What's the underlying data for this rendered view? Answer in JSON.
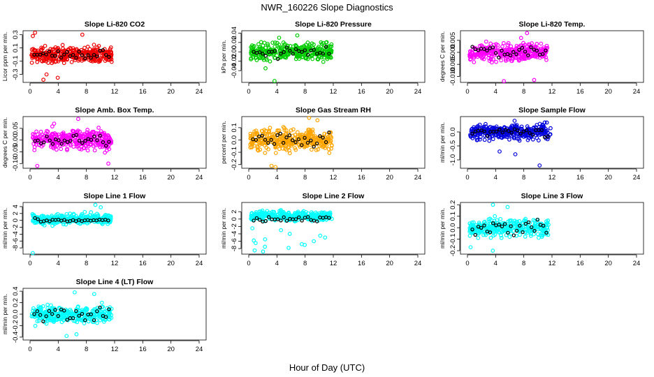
{
  "figure": {
    "title": "NWR_160226  Slope Diagnostics",
    "xlabel": "Hour of Day (UTC)"
  },
  "chart_data": [
    {
      "type": "scatter",
      "title": "Slope Li-820 CO2",
      "ylabel": "Licor ppm per min.",
      "color": "#ee0000",
      "xlim": [
        0,
        24
      ],
      "xticks": [
        0,
        4,
        8,
        12,
        16,
        20,
        24
      ],
      "ylim": [
        -0.42,
        0.36
      ],
      "yticks": [
        -0.3,
        -0.1,
        0.1,
        0.3
      ],
      "ytick_labels": [
        "-0.3",
        "-0.1",
        "0.1",
        "0.3"
      ],
      "x_range": [
        0.2,
        11.6
      ],
      "center": 0.0,
      "spread": 0.1,
      "ref_spread": 0.05,
      "ref_offset": 0.0,
      "extremes": [
        -0.38,
        -0.35,
        0.33,
        0.3,
        0.28,
        -0.3
      ]
    },
    {
      "type": "scatter",
      "title": "Slope Li-820 Pressure",
      "ylabel": "kPa per min.",
      "color": "#00cc00",
      "xlim": [
        0,
        24
      ],
      "xticks": [
        0,
        4,
        8,
        12,
        16,
        20,
        24
      ],
      "ylim": [
        -0.065,
        0.045
      ],
      "yticks": [
        -0.04,
        -0.02,
        0.0,
        0.02,
        0.04
      ],
      "ytick_labels": [
        "-0.04",
        "-0.02",
        "0.00",
        "0.02",
        "0.04"
      ],
      "x_range": [
        0.3,
        11.8
      ],
      "center": 0.0,
      "spread": 0.014,
      "ref_spread": 0.008,
      "ref_offset": 0.0,
      "extremes": [
        -0.062,
        0.035,
        0.03,
        -0.035
      ]
    },
    {
      "type": "scatter",
      "title": "Slope Li-820 Temp.",
      "ylabel": "degrees C per min.",
      "color": "#ff00ff",
      "xlim": [
        0,
        24
      ],
      "xticks": [
        0,
        4,
        8,
        12,
        16,
        20,
        24
      ],
      "ylim": [
        -0.0125,
        0.009
      ],
      "yticks": [
        -0.01,
        -0.005,
        0.0,
        0.005
      ],
      "ytick_labels": [
        "-0.010",
        "-0.005",
        "0.000",
        "0.005"
      ],
      "x_range": [
        0.3,
        11.5
      ],
      "center": 0.0,
      "spread": 0.003,
      "ref_spread": 0.002,
      "ref_offset": 0.0,
      "extremes": [
        -0.012,
        -0.0115,
        0.006,
        0.008
      ]
    },
    {
      "type": "scatter",
      "title": "Slope Amb. Box Temp.",
      "ylabel": "degrees C per min.",
      "color": "#ff00ff",
      "xlim": [
        0,
        24
      ],
      "xticks": [
        0,
        4,
        8,
        12,
        16,
        20,
        24
      ],
      "ylim": [
        -0.12,
        0.1
      ],
      "yticks": [
        -0.1,
        -0.05,
        0.0,
        0.05
      ],
      "ytick_labels": [
        "-0.10",
        "-0.05",
        "0.00",
        "0.05"
      ],
      "x_range": [
        0.3,
        11.6
      ],
      "center": 0.0,
      "spread": 0.033,
      "ref_spread": 0.02,
      "ref_offset": 0.0,
      "extremes": [
        0.09,
        -0.11,
        -0.1,
        0.07
      ]
    },
    {
      "type": "scatter",
      "title": "Slope Gas Stream RH",
      "ylabel": "percent per min.",
      "color": "#ffa500",
      "xlim": [
        0,
        24
      ],
      "xticks": [
        0,
        4,
        8,
        12,
        16,
        20,
        24
      ],
      "ylim": [
        -0.23,
        0.19
      ],
      "yticks": [
        -0.2,
        -0.1,
        0.0,
        0.1
      ],
      "ytick_labels": [
        "-0.2",
        "-0.1",
        "0.0",
        "0.1"
      ],
      "x_range": [
        0.2,
        11.8
      ],
      "center": 0.0,
      "spread": 0.07,
      "ref_spread": 0.045,
      "ref_offset": 0.0,
      "extremes": [
        0.18,
        -0.22,
        -0.21,
        0.16
      ]
    },
    {
      "type": "scatter",
      "title": "Slope Sample Flow",
      "ylabel": "ml/min per min.",
      "color": "#0000dd",
      "xlim": [
        0,
        24
      ],
      "xticks": [
        0,
        4,
        8,
        12,
        16,
        20,
        24
      ],
      "ylim": [
        -1.3,
        0.55
      ],
      "yticks": [
        -1.0,
        -0.5,
        0.0
      ],
      "ytick_labels": [
        "-1.0",
        "-0.5",
        "0.0"
      ],
      "x_range": [
        0.3,
        11.8
      ],
      "center": 0.0,
      "spread": 0.22,
      "ref_spread": 0.15,
      "ref_offset": 0.0,
      "extremes": [
        -1.2,
        0.4,
        -0.8,
        -0.7
      ]
    },
    {
      "type": "scatter",
      "title": "Slope Line 1 Flow",
      "ylabel": "ml/min per min.",
      "color": "#00ffff",
      "xlim": [
        0,
        24
      ],
      "xticks": [
        0,
        4,
        8,
        12,
        16,
        20,
        24
      ],
      "ylim": [
        -9.8,
        5.2
      ],
      "yticks": [
        -8,
        -6,
        -4,
        -2,
        0,
        2,
        4
      ],
      "ytick_labels": [
        "-8",
        "-6",
        "-4",
        "-2",
        "0",
        "2",
        "4"
      ],
      "x_range": [
        0.3,
        11.5
      ],
      "center": 0.3,
      "spread": 1.2,
      "ref_spread": 0.4,
      "ref_offset": 0.0,
      "extremes": [
        -9.5,
        4.5,
        3.8
      ]
    },
    {
      "type": "scatter",
      "title": "Slope Line 2 Flow",
      "ylabel": "ml/min per min.",
      "color": "#00ffff",
      "xlim": [
        0,
        24
      ],
      "xticks": [
        0,
        4,
        8,
        12,
        16,
        20,
        24
      ],
      "ylim": [
        -9.5,
        4.5
      ],
      "yticks": [
        -8,
        -6,
        -4,
        -2,
        0,
        2
      ],
      "ytick_labels": [
        "-8",
        "-6",
        "-4",
        "-2",
        "0",
        "2"
      ],
      "x_range": [
        0.3,
        11.8
      ],
      "center": 0.8,
      "spread": 1.0,
      "ref_spread": 0.9,
      "ref_offset": 0.0,
      "extremes": [
        -8.8,
        -8.5,
        -7.5,
        -7.8,
        -6.5,
        -6.0,
        -5.5,
        -5.0,
        -4.5,
        -4.0,
        -3.0,
        -2.5,
        -7.0,
        -6.8,
        -5.8
      ]
    },
    {
      "type": "scatter",
      "title": "Slope Line 3 Flow",
      "ylabel": "ml/min per min.",
      "color": "#00ffff",
      "xlim": [
        0,
        24
      ],
      "xticks": [
        0,
        4,
        8,
        12,
        16,
        20,
        24
      ],
      "ylim": [
        -0.23,
        0.22
      ],
      "yticks": [
        -0.2,
        -0.1,
        0.0,
        0.1,
        0.2
      ],
      "ytick_labels": [
        "-0.2",
        "-0.1",
        "0.0",
        "0.1",
        "0.2"
      ],
      "x_range": [
        0.3,
        11.6
      ],
      "center": 0.0,
      "spread": 0.06,
      "ref_spread": 0.05,
      "ref_offset": 0.0,
      "extremes": [
        0.2,
        -0.2,
        0.18,
        -0.17
      ]
    },
    {
      "type": "scatter",
      "title": "Slope Line 4 (LT) Flow",
      "ylabel": "ml/min per min.",
      "color": "#00ffff",
      "xlim": [
        0,
        24
      ],
      "xticks": [
        0,
        4,
        8,
        12,
        16,
        20,
        24
      ],
      "ylim": [
        -0.45,
        0.45
      ],
      "yticks": [
        -0.4,
        -0.2,
        0.0,
        0.2,
        0.4
      ],
      "ytick_labels": [
        "-0.4",
        "-0.2",
        "0.0",
        "0.2",
        "0.4"
      ],
      "x_range": [
        0.2,
        11.6
      ],
      "center": 0.0,
      "spread": 0.12,
      "ref_spread": 0.1,
      "ref_offset": 0.0,
      "extremes": [
        -0.38,
        0.38,
        0.35,
        -0.35
      ]
    }
  ]
}
